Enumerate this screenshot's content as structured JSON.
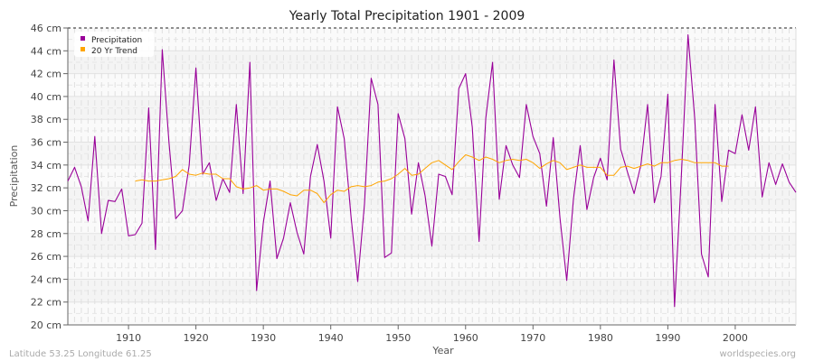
{
  "chart_data": {
    "type": "line",
    "title": "Yearly Total Precipitation 1901 - 2009",
    "xlabel": "Year",
    "ylabel": "Precipitation",
    "xlim": [
      1901,
      2009
    ],
    "ylim": [
      20,
      46
    ],
    "y_unit": "cm",
    "x_ticks": [
      1910,
      1920,
      1930,
      1940,
      1950,
      1960,
      1970,
      1980,
      1990,
      2000
    ],
    "y_ticks": [
      20,
      22,
      24,
      26,
      28,
      30,
      32,
      34,
      36,
      38,
      40,
      42,
      44,
      46
    ],
    "y_tick_labels": [
      "20 cm",
      "22 cm",
      "24 cm",
      "26 cm",
      "28 cm",
      "30 cm",
      "32 cm",
      "34 cm",
      "36 cm",
      "38 cm",
      "40 cm",
      "42 cm",
      "44 cm",
      "46 cm"
    ],
    "grid": true,
    "legend_placement": "top-left",
    "series": [
      {
        "name": "Precipitation",
        "color": "#990099",
        "x_start": 1901,
        "values": [
          32.6,
          33.8,
          32.1,
          29.1,
          36.5,
          28.0,
          30.9,
          30.8,
          31.9,
          27.8,
          27.9,
          28.9,
          39.0,
          26.6,
          44.1,
          36.0,
          29.3,
          30.0,
          34.0,
          42.5,
          33.2,
          34.2,
          30.9,
          32.8,
          31.6,
          39.3,
          31.5,
          43.0,
          23.0,
          29.0,
          32.6,
          25.8,
          27.6,
          30.7,
          28.1,
          26.2,
          33.0,
          35.8,
          32.6,
          27.6,
          39.1,
          36.3,
          29.5,
          23.8,
          30.6,
          41.6,
          39.3,
          25.9,
          26.3,
          38.5,
          36.3,
          29.7,
          34.2,
          31.3,
          26.9,
          33.2,
          33.0,
          31.4,
          40.7,
          42.0,
          37.3,
          27.3,
          38.1,
          43.0,
          31.0,
          35.7,
          34.0,
          32.9,
          39.3,
          36.5,
          35.0,
          30.4,
          36.4,
          29.4,
          23.9,
          31.0,
          35.7,
          30.1,
          32.9,
          34.6,
          32.7,
          43.2,
          35.4,
          33.4,
          31.5,
          34.0,
          39.3,
          30.7,
          33.0,
          40.2,
          21.6,
          33.0,
          45.4,
          38.0,
          26.2,
          24.2,
          39.3,
          30.8,
          35.3,
          35.0,
          38.4,
          35.3,
          39.1,
          31.2,
          34.2,
          32.3,
          34.1,
          32.5,
          31.6
        ]
      },
      {
        "name": "20 Yr Trend",
        "color": "#ffa500",
        "x_start": 1911,
        "values": [
          32.6,
          32.7,
          32.6,
          32.6,
          32.7,
          32.8,
          33.0,
          33.6,
          33.2,
          33.1,
          33.3,
          33.2,
          33.2,
          32.8,
          32.8,
          32.1,
          31.9,
          32.0,
          32.2,
          31.8,
          31.9,
          31.9,
          31.7,
          31.4,
          31.3,
          31.8,
          31.8,
          31.5,
          30.7,
          31.4,
          31.8,
          31.7,
          32.1,
          32.2,
          32.1,
          32.2,
          32.5,
          32.6,
          32.8,
          33.2,
          33.7,
          33.1,
          33.2,
          33.7,
          34.2,
          34.4,
          34.0,
          33.6,
          34.3,
          34.9,
          34.7,
          34.4,
          34.7,
          34.5,
          34.2,
          34.4,
          34.5,
          34.4,
          34.5,
          34.2,
          33.7,
          34.1,
          34.4,
          34.2,
          33.6,
          33.8,
          34.0,
          33.8,
          33.8,
          33.8,
          33.1,
          33.1,
          33.8,
          33.9,
          33.7,
          33.9,
          34.1,
          33.9,
          34.2,
          34.2,
          34.4,
          34.5,
          34.4,
          34.2,
          34.2,
          34.2,
          34.2,
          33.9,
          33.9
        ]
      }
    ]
  },
  "footer": {
    "location": "Latitude 53.25 Longitude 61.25",
    "source": "worldspecies.org"
  }
}
